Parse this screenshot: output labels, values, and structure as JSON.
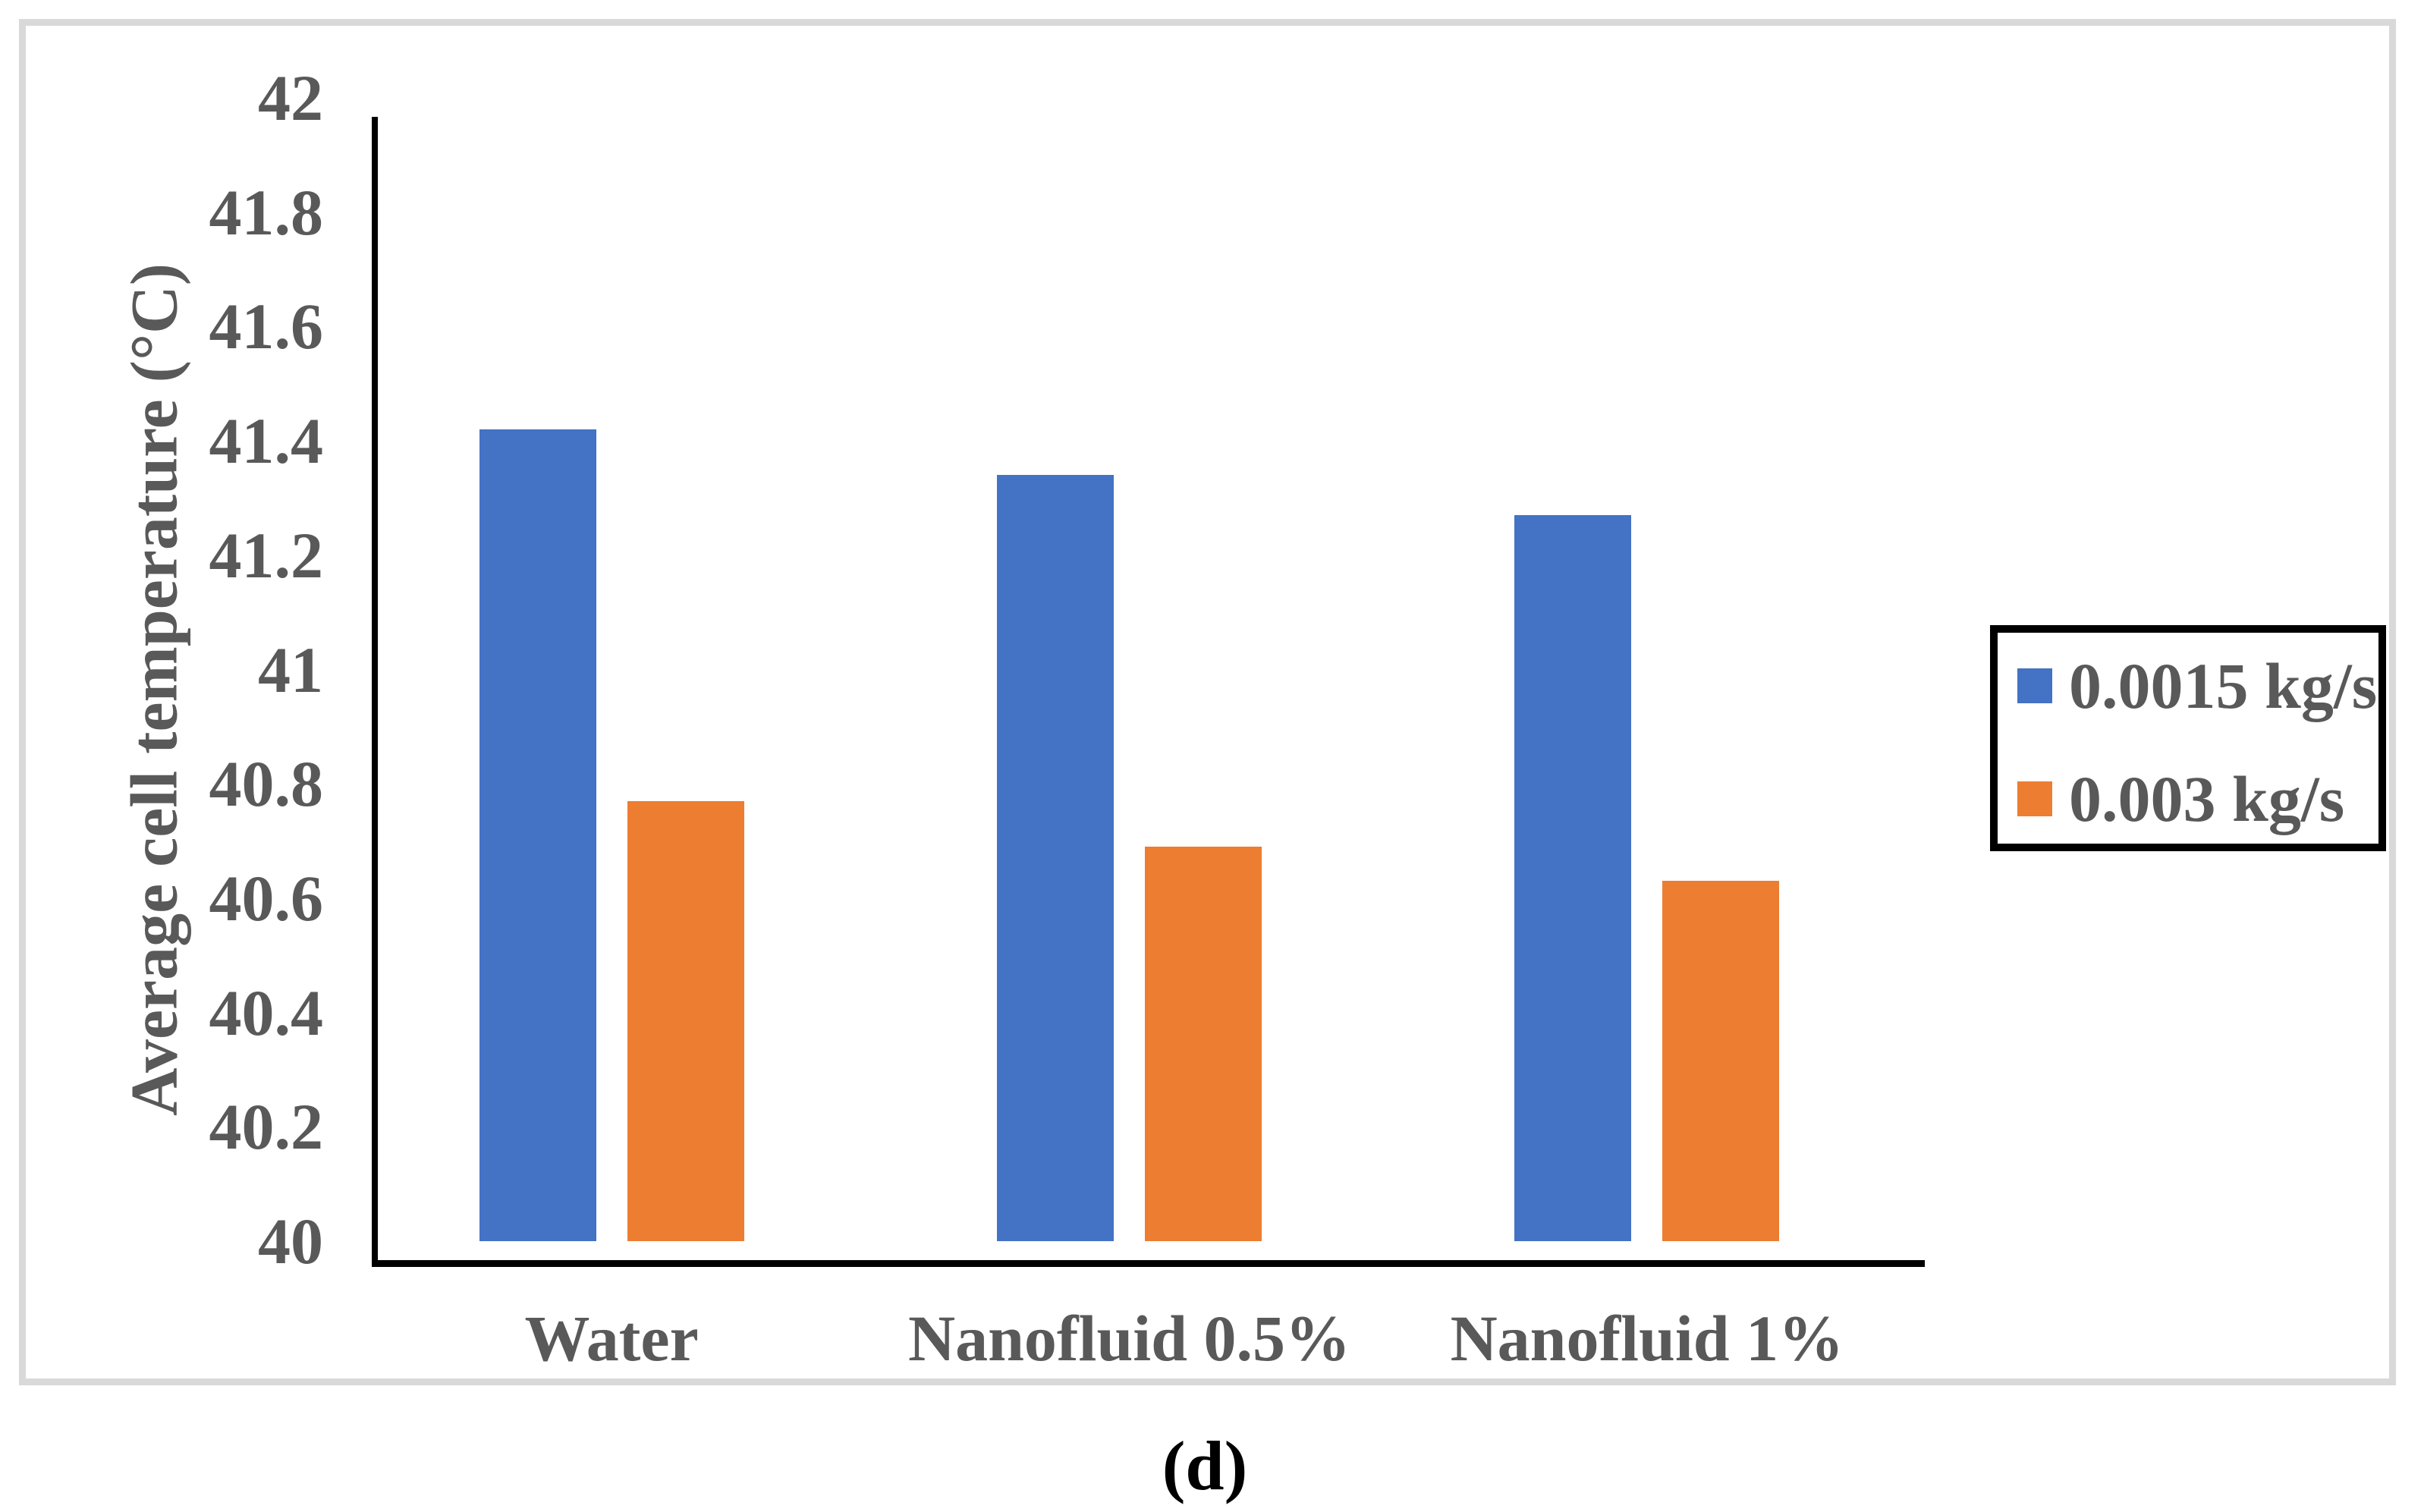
{
  "chart_data": {
    "type": "bar",
    "title": "",
    "categories": [
      "Water",
      "Nanofluid 0.5%",
      "Nanofluid 1%"
    ],
    "series": [
      {
        "name": "0.0015 kg/s",
        "color": "#4472C4",
        "values": [
          41.42,
          41.34,
          41.27
        ]
      },
      {
        "name": "0.003 kg/s",
        "color": "#ED7D31",
        "values": [
          40.77,
          40.69,
          40.63
        ]
      }
    ],
    "xlabel": "",
    "ylabel": "Average cell temperature (°C)",
    "ylim": [
      40,
      42
    ],
    "ytick_step": 0.2,
    "yticks": [
      "42",
      "41.8",
      "41.6",
      "41.4",
      "41.2",
      "41",
      "40.8",
      "40.6",
      "40.4",
      "40.2",
      "40"
    ],
    "grid": false,
    "legend_position": "right",
    "bar_color_blue": "#4472C4",
    "bar_color_orange": "#ED7D31",
    "text_color": "#595959",
    "axis_color": "#000000",
    "frame_color": "#D9D9D9"
  },
  "caption": "(d)"
}
